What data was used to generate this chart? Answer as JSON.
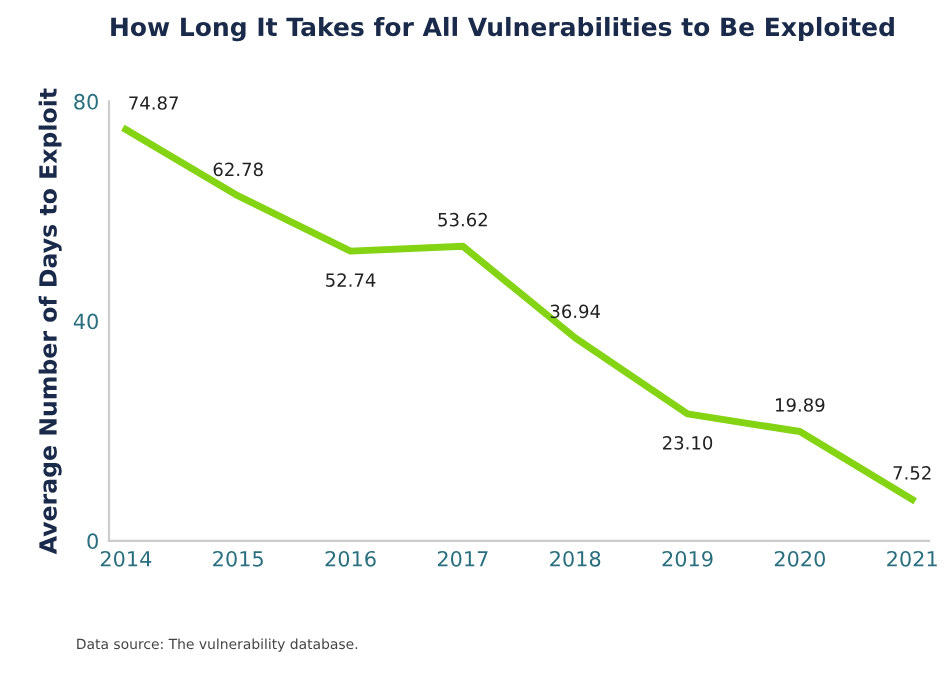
{
  "chart_data": {
    "type": "line",
    "title": "How Long It Takes for All Vulnerabilities to Be Exploited",
    "ylabel": "Average Number of Days to Exploit",
    "categories": [
      "2014",
      "2015",
      "2016",
      "2017",
      "2018",
      "2019",
      "2020",
      "2021"
    ],
    "series": [
      {
        "color": "#84d414",
        "values": [
          74.87,
          62.78,
          52.74,
          53.62,
          36.94,
          23.1,
          19.89,
          7.52
        ],
        "value_labels": [
          "74.87",
          "62.78",
          "52.74",
          "53.62",
          "36.94",
          "23.10",
          "19.89",
          "7.52"
        ]
      }
    ],
    "ylim": [
      0,
      80
    ],
    "yticks": [
      0,
      40,
      80
    ],
    "grid": false,
    "legend": false,
    "marker": "none",
    "line_style": "solid",
    "annotations": [
      "Data source: The vulnerability database."
    ]
  }
}
